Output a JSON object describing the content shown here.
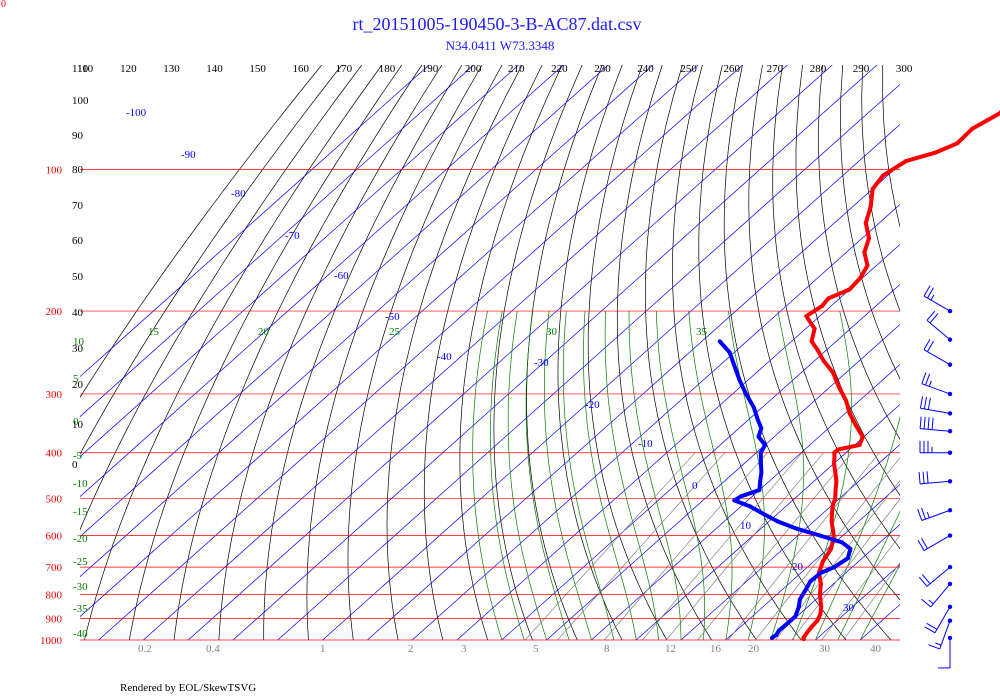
{
  "title": "rt_20151005-190450-3-B-AC87.dat.csv",
  "subtitle": "N34.0411 W73.3348",
  "footer": "Rendered by EOL/SkewTSVG",
  "corner_label": "0",
  "colors": {
    "isobar": "#ff0000",
    "isotherm": "#0000ff",
    "dry_adiabat": "#000000",
    "moist_adiabat": "#008000",
    "mixing_ratio": "#808080",
    "temperature": "#ff0000",
    "dewpoint": "#0000ff",
    "wind": "#0000ff",
    "title": "#1a1aff"
  },
  "chart_data": {
    "type": "scatter",
    "subtype": "skew-t log-p",
    "y_scale": "log",
    "pressure_range_hpa": [
      100,
      1000
    ],
    "temperature_range_c": [
      -40,
      40
    ],
    "pressure_labels": [
      "100",
      "200",
      "300",
      "400",
      "500",
      "600",
      "700",
      "800",
      "900",
      "1000"
    ],
    "isotherm_labels": [
      "-100",
      "-90",
      "-80",
      "-70",
      "-60",
      "-50",
      "-40",
      "-30",
      "-20",
      "-10",
      "0",
      "10",
      "20",
      "30"
    ],
    "theta_labels": [
      "110",
      "120",
      "130",
      "140",
      "150",
      "160",
      "170",
      "180",
      "190",
      "200",
      "210",
      "220",
      "230",
      "240",
      "250",
      "260",
      "270",
      "280",
      "290",
      "300"
    ],
    "theta_left_labels": [
      "110",
      "100",
      "90",
      "80",
      "70",
      "60",
      "50",
      "40",
      "30",
      "20",
      "10",
      "0"
    ],
    "moist_labels_top": [
      "15",
      "20",
      "25",
      "30",
      "35"
    ],
    "moist_labels_left": [
      "10",
      "5",
      "0",
      "-5",
      "-10",
      "-15",
      "-20",
      "-25",
      "-30",
      "-35",
      "-40"
    ],
    "mixing_ratio_labels": [
      "0.2",
      "0.4",
      "1",
      "2",
      "3",
      "5",
      "8",
      "12",
      "16",
      "20",
      "30",
      "40"
    ],
    "series": [
      {
        "name": "Temperature",
        "points": [
          [
            996,
            27.2
          ],
          [
            990,
            26.8
          ],
          [
            970,
            26.4
          ],
          [
            940,
            25.9
          ],
          [
            910,
            25.6
          ],
          [
            880,
            24.6
          ],
          [
            850,
            23.0
          ],
          [
            800,
            19.6
          ],
          [
            760,
            17.2
          ],
          [
            720,
            14.0
          ],
          [
            680,
            12.0
          ],
          [
            640,
            10.7
          ],
          [
            600,
            8.0
          ],
          [
            560,
            4.0
          ],
          [
            520,
            0.4
          ],
          [
            500,
            -1.0
          ],
          [
            480,
            -3.0
          ],
          [
            460,
            -5.0
          ],
          [
            440,
            -7.5
          ],
          [
            420,
            -10.2
          ],
          [
            410,
            -11.3
          ],
          [
            400,
            -12.6
          ],
          [
            394,
            -12.6
          ],
          [
            385,
            -8.9
          ],
          [
            370,
            -10.2
          ],
          [
            350,
            -14.6
          ],
          [
            330,
            -19.0
          ],
          [
            310,
            -23.0
          ],
          [
            290,
            -28.0
          ],
          [
            270,
            -33.0
          ],
          [
            255,
            -38.0
          ],
          [
            242,
            -42.0
          ],
          [
            232,
            -45.5
          ],
          [
            218,
            -48.0
          ],
          [
            205,
            -53.0
          ],
          [
            195,
            -52.0
          ],
          [
            188,
            -52.5
          ],
          [
            180,
            -50.0
          ],
          [
            170,
            -50.5
          ],
          [
            160,
            -52.0
          ],
          [
            150,
            -56.0
          ],
          [
            140,
            -58.5
          ],
          [
            130,
            -63.0
          ],
          [
            120,
            -66.0
          ],
          [
            110,
            -70.0
          ],
          [
            103,
            -71.0
          ],
          [
            96,
            -69.5
          ],
          [
            92,
            -65.0
          ],
          [
            88,
            -62.5
          ],
          [
            82,
            -62.8
          ],
          [
            76,
            -60.5
          ],
          [
            73,
            -61.0
          ],
          [
            70,
            -60.0
          ],
          [
            66,
            -59.0
          ],
          [
            62,
            -60.0
          ],
          [
            60,
            -59.5
          ]
        ]
      },
      {
        "name": "Dewpoint",
        "points": [
          [
            990,
            19.8
          ],
          [
            975,
            20.0
          ],
          [
            955,
            19.5
          ],
          [
            930,
            19.6
          ],
          [
            890,
            19.6
          ],
          [
            850,
            18.0
          ],
          [
            820,
            16.4
          ],
          [
            780,
            15.2
          ],
          [
            750,
            14.2
          ],
          [
            720,
            14.4
          ],
          [
            700,
            16.0
          ],
          [
            670,
            16.8
          ],
          [
            640,
            15.0
          ],
          [
            620,
            11.5
          ],
          [
            600,
            5.0
          ],
          [
            580,
            -2.0
          ],
          [
            560,
            -8.0
          ],
          [
            540,
            -13.0
          ],
          [
            520,
            -18.0
          ],
          [
            505,
            -23.0
          ],
          [
            495,
            -22.5
          ],
          [
            480,
            -20.0
          ],
          [
            460,
            -22.0
          ],
          [
            440,
            -24.0
          ],
          [
            420,
            -26.5
          ],
          [
            400,
            -29.0
          ],
          [
            385,
            -30.0
          ],
          [
            370,
            -33.5
          ],
          [
            355,
            -35.0
          ],
          [
            340,
            -38.0
          ],
          [
            320,
            -42.0
          ],
          [
            300,
            -47.0
          ],
          [
            280,
            -52.0
          ],
          [
            260,
            -57.0
          ],
          [
            245,
            -61.0
          ],
          [
            232,
            -66.0
          ]
        ]
      }
    ],
    "wind_barbs": [
      {
        "pressure": 990,
        "direction": 180,
        "speed_kt": 10
      },
      {
        "pressure": 910,
        "direction": 200,
        "speed_kt": 15
      },
      {
        "pressure": 850,
        "direction": 210,
        "speed_kt": 20
      },
      {
        "pressure": 760,
        "direction": 220,
        "speed_kt": 15
      },
      {
        "pressure": 700,
        "direction": 230,
        "speed_kt": 20
      },
      {
        "pressure": 600,
        "direction": 240,
        "speed_kt": 20
      },
      {
        "pressure": 530,
        "direction": 250,
        "speed_kt": 25
      },
      {
        "pressure": 460,
        "direction": 265,
        "speed_kt": 30
      },
      {
        "pressure": 400,
        "direction": 270,
        "speed_kt": 35
      },
      {
        "pressure": 360,
        "direction": 275,
        "speed_kt": 40
      },
      {
        "pressure": 330,
        "direction": 280,
        "speed_kt": 30
      },
      {
        "pressure": 300,
        "direction": 290,
        "speed_kt": 25
      },
      {
        "pressure": 260,
        "direction": 300,
        "speed_kt": 20
      },
      {
        "pressure": 230,
        "direction": 310,
        "speed_kt": 20
      },
      {
        "pressure": 200,
        "direction": 300,
        "speed_kt": 25
      }
    ]
  }
}
